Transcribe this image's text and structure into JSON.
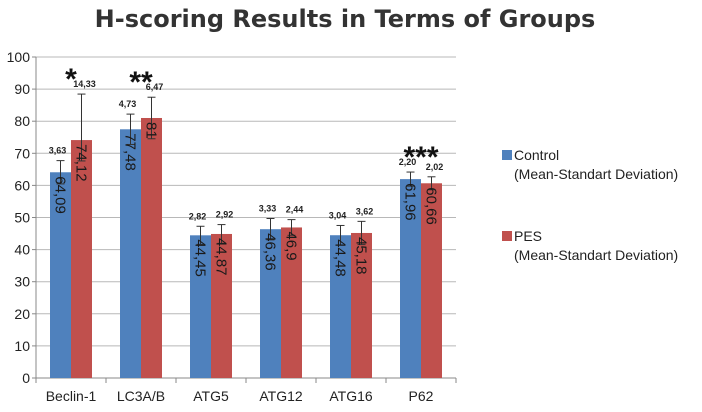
{
  "chart_data": {
    "type": "bar",
    "title": "H-scoring Results in Terms of Groups",
    "xlabel": "",
    "ylabel": "",
    "ylim": [
      0,
      100
    ],
    "yticks": [
      0,
      10,
      20,
      30,
      40,
      50,
      60,
      70,
      80,
      90,
      100
    ],
    "grid": true,
    "legend_position": "right",
    "categories": [
      "Beclin-1",
      "LC3A/B",
      "ATG5",
      "ATG12",
      "ATG16",
      "P62"
    ],
    "series": [
      {
        "name": "Control",
        "name_sub": "(Mean-Standart Deviation)",
        "color": "#4F81BD",
        "values": [
          64.09,
          77.48,
          44.45,
          46.36,
          44.48,
          61.96
        ],
        "value_labels": [
          "64,09",
          "77,48",
          "44,45",
          "46,36",
          "44,48",
          "61,96"
        ],
        "errors": [
          3.63,
          4.73,
          2.82,
          3.33,
          3.04,
          2.2
        ],
        "error_labels": [
          "3,63",
          "4,73",
          "2,82",
          "3,33",
          "3,04",
          "2,20"
        ]
      },
      {
        "name": "PES",
        "name_sub": "(Mean-Standart Deviation)",
        "color": "#C0504D",
        "values": [
          74.12,
          81,
          44.87,
          46.9,
          45.18,
          60.66
        ],
        "value_labels": [
          "74,12",
          "81",
          "44,87",
          "46,9",
          "45,18",
          "60,66"
        ],
        "errors": [
          14.33,
          6.47,
          2.92,
          2.44,
          3.62,
          2.02
        ],
        "error_labels": [
          "14,33",
          "6,47",
          "2,92",
          "2,44",
          "3,62",
          "2,02"
        ]
      }
    ],
    "significance": [
      "*",
      "**",
      "",
      "",
      "",
      "***"
    ]
  }
}
